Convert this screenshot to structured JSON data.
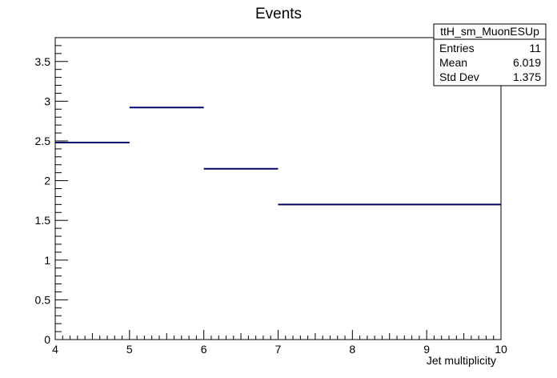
{
  "chart_data": {
    "type": "bar",
    "title": "Events",
    "xlabel": "Jet multiplicity",
    "ylabel": "",
    "xlim": [
      4,
      10
    ],
    "ylim": [
      0,
      3.8
    ],
    "x_ticks": [
      "4",
      "5",
      "6",
      "7",
      "8",
      "9",
      "10"
    ],
    "y_ticks": [
      "0",
      "0.5",
      "1",
      "1.5",
      "2",
      "2.5",
      "3",
      "3.5"
    ],
    "bins": [
      {
        "x_low": 4,
        "x_high": 5,
        "value": 2.48
      },
      {
        "x_low": 5,
        "x_high": 6,
        "value": 2.92
      },
      {
        "x_low": 6,
        "x_high": 7,
        "value": 2.15
      },
      {
        "x_low": 7,
        "x_high": 10,
        "value": 1.7
      }
    ],
    "grid": false,
    "legend": "none",
    "line_color": "#000066",
    "stats_box": {
      "title": "ttH_sm_MuonESUp",
      "rows": [
        {
          "label": "Entries",
          "value": "11"
        },
        {
          "label": "Mean",
          "value": "6.019"
        },
        {
          "label": "Std Dev",
          "value": "1.375"
        }
      ]
    }
  }
}
